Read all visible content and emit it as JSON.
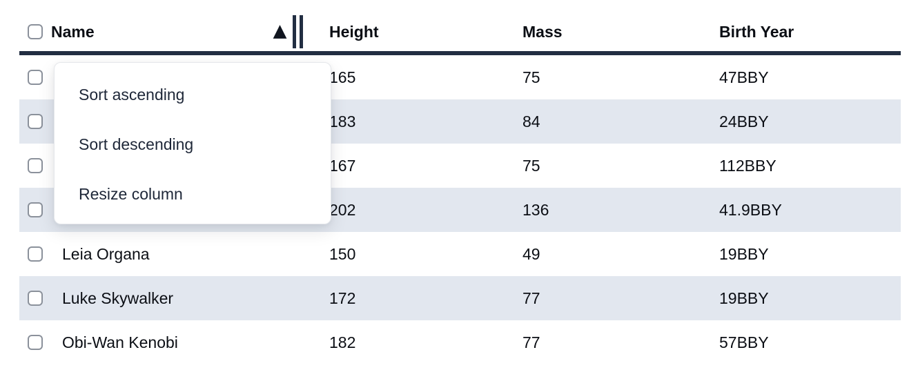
{
  "table": {
    "columns": [
      {
        "id": "name",
        "label": "Name"
      },
      {
        "id": "height",
        "label": "Height"
      },
      {
        "id": "mass",
        "label": "Mass"
      },
      {
        "id": "birth_year",
        "label": "Birth Year"
      }
    ],
    "sort": {
      "column": "Name",
      "direction": "ascending"
    },
    "rows": [
      {
        "name": "",
        "height": "165",
        "mass": "75",
        "birth_year": "47BBY"
      },
      {
        "name": "",
        "height": "183",
        "mass": "84",
        "birth_year": "24BBY"
      },
      {
        "name": "",
        "height": "167",
        "mass": "75",
        "birth_year": "112BBY"
      },
      {
        "name": "",
        "height": "202",
        "mass": "136",
        "birth_year": "41.9BBY"
      },
      {
        "name": "Leia Organa",
        "height": "150",
        "mass": "49",
        "birth_year": "19BBY"
      },
      {
        "name": "Luke Skywalker",
        "height": "172",
        "mass": "77",
        "birth_year": "19BBY"
      },
      {
        "name": "Obi-Wan Kenobi",
        "height": "182",
        "mass": "77",
        "birth_year": "57BBY"
      }
    ]
  },
  "context_menu": {
    "items": [
      {
        "label": "Sort ascending"
      },
      {
        "label": "Sort descending"
      },
      {
        "label": "Resize column"
      }
    ]
  },
  "colors": {
    "row_stripe": "#e2e7ef",
    "header_border": "#222e42",
    "table_text": "#0b0e14",
    "menu_text": "#1e2738",
    "checkbox_border": "#8b919b",
    "menu_border": "#e5e7eb"
  }
}
